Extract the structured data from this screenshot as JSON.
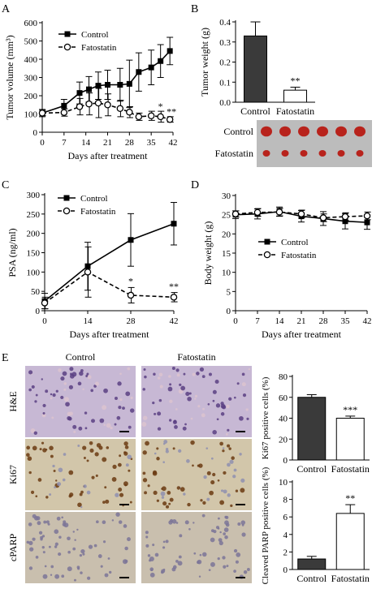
{
  "panel_letters": {
    "A": "A",
    "B": "B",
    "C": "C",
    "D": "D",
    "E": "E"
  },
  "colors": {
    "axis": "#000000",
    "bar_dark": "#3a3a3a",
    "bar_open": "#ffffff"
  },
  "images": {
    "col_headers": [
      "Control",
      "Fatostatin"
    ],
    "row_labels": [
      "H&E",
      "Ki67",
      "cPARP"
    ],
    "tumor_rows": [
      "Control",
      "Fatostatin"
    ],
    "tumor_counts": [
      6,
      6
    ],
    "colors": {
      "he_bg": "#c7b8d4",
      "he_dot": "#5a3f82",
      "he_pink": "#dcc3cf",
      "ki67_bg": "#d2c6aa",
      "ki67_dot": "#6b3a12",
      "ki67_blue": "#8f8fb0",
      "cparp_bg": "#c9bfae",
      "cparp_dot": "#7b7498",
      "tumor_bg": "#bcbcbc",
      "tumor": "#b8231c"
    }
  },
  "chart_data": [
    {
      "panel": "A",
      "type": "line",
      "xlabel": "Days after treatment",
      "ylabel": "Tumor volume (mm³)",
      "xlim": [
        0,
        42
      ],
      "ylim": [
        0,
        600
      ],
      "xticks": [
        0,
        7,
        14,
        21,
        28,
        35,
        42
      ],
      "yticks": [
        0,
        100,
        200,
        300,
        400,
        500,
        600
      ],
      "legend": "top-left",
      "series": [
        {
          "name": "Control",
          "style": "solid",
          "marker": "square-filled",
          "x": [
            0,
            7,
            12,
            15,
            18,
            21,
            25,
            28,
            31,
            35,
            38,
            41
          ],
          "y": [
            105,
            145,
            215,
            235,
            255,
            260,
            260,
            265,
            330,
            355,
            390,
            445
          ],
          "err": [
            20,
            35,
            60,
            70,
            75,
            80,
            90,
            130,
            105,
            95,
            90,
            75
          ]
        },
        {
          "name": "Fatostatin",
          "style": "dashed",
          "marker": "circle-open",
          "x": [
            0,
            7,
            12,
            15,
            18,
            21,
            25,
            28,
            31,
            35,
            38,
            41
          ],
          "y": [
            105,
            108,
            140,
            155,
            160,
            150,
            130,
            110,
            85,
            90,
            85,
            70
          ],
          "err": [
            15,
            20,
            45,
            60,
            80,
            60,
            45,
            30,
            20,
            25,
            30,
            15
          ]
        }
      ],
      "annotations": [
        {
          "x": 38,
          "y": 125,
          "text": "*"
        },
        {
          "x": 41.5,
          "y": 95,
          "text": "**"
        }
      ]
    },
    {
      "panel": "B",
      "type": "bar",
      "ylabel": "Tumor weight (g)",
      "ylim": [
        0,
        0.4
      ],
      "yticks": [
        0.0,
        0.1,
        0.2,
        0.3,
        0.4
      ],
      "categories": [
        "Control",
        "Fatostatin"
      ],
      "values": [
        0.33,
        0.06
      ],
      "errors": [
        0.07,
        0.015
      ],
      "annotations": [
        {
          "category": "Fatostatin",
          "text": "**"
        }
      ]
    },
    {
      "panel": "C",
      "type": "line",
      "xlabel": "Days after treatment",
      "ylabel": "PSA (ng/ml)",
      "xlim": [
        0,
        42
      ],
      "ylim": [
        0,
        300
      ],
      "xticks": [
        0,
        14,
        28,
        42
      ],
      "yticks": [
        0,
        50,
        100,
        150,
        200,
        250,
        300
      ],
      "legend": "top-left",
      "series": [
        {
          "name": "Control",
          "style": "solid",
          "marker": "square-filled",
          "x": [
            0,
            14,
            28,
            42
          ],
          "y": [
            25,
            115,
            183,
            225
          ],
          "err": [
            20,
            62,
            68,
            55
          ]
        },
        {
          "name": "Fatostatin",
          "style": "dashed",
          "marker": "circle-open",
          "x": [
            0,
            14,
            28,
            42
          ],
          "y": [
            20,
            100,
            40,
            35
          ],
          "err": [
            15,
            65,
            20,
            12
          ]
        }
      ],
      "annotations": [
        {
          "x": 28,
          "y": 68,
          "text": "*"
        },
        {
          "x": 42,
          "y": 55,
          "text": "**"
        }
      ]
    },
    {
      "panel": "D",
      "type": "line",
      "xlabel": "Days after treatment",
      "ylabel": "Body weight (g)",
      "xlim": [
        0,
        42
      ],
      "ylim": [
        0,
        30
      ],
      "xticks": [
        0,
        7,
        14,
        21,
        28,
        35,
        42
      ],
      "yticks": [
        0,
        5,
        10,
        15,
        20,
        25,
        30
      ],
      "legend": "bottom-right",
      "series": [
        {
          "name": "Control",
          "style": "solid",
          "marker": "square-filled",
          "x": [
            0,
            7,
            14,
            21,
            28,
            35,
            42
          ],
          "y": [
            25.0,
            25.2,
            25.8,
            24.6,
            24.0,
            23.3,
            23.0
          ],
          "err": [
            1.0,
            1.3,
            1.2,
            1.5,
            1.8,
            2.0,
            1.8
          ]
        },
        {
          "name": "Fatostatin",
          "style": "dashed",
          "marker": "circle-open",
          "x": [
            0,
            7,
            14,
            21,
            28,
            35,
            42
          ],
          "y": [
            25.2,
            25.6,
            25.7,
            25.2,
            24.2,
            24.5,
            24.7
          ],
          "err": [
            0.8,
            1.0,
            1.0,
            1.0,
            1.0,
            1.0,
            1.0
          ]
        }
      ]
    },
    {
      "panel": "E-Ki67",
      "type": "bar",
      "ylabel": "Ki67 positive cells (%)",
      "ylim": [
        0,
        80
      ],
      "yticks": [
        0,
        20,
        40,
        60,
        80
      ],
      "categories": [
        "Control",
        "Fatostatin"
      ],
      "values": [
        60,
        40
      ],
      "errors": [
        2.5,
        2.0
      ],
      "annotations": [
        {
          "category": "Fatostatin",
          "text": "***"
        }
      ]
    },
    {
      "panel": "E-cPARP",
      "type": "bar",
      "ylabel": "Cleaved PARP positive cells (%)",
      "ylim": [
        0,
        10
      ],
      "yticks": [
        0,
        2,
        4,
        6,
        8,
        10
      ],
      "categories": [
        "Control",
        "Fatostatin"
      ],
      "values": [
        1.2,
        6.4
      ],
      "errors": [
        0.3,
        1.0
      ],
      "annotations": [
        {
          "category": "Fatostatin",
          "text": "**"
        }
      ]
    }
  ]
}
